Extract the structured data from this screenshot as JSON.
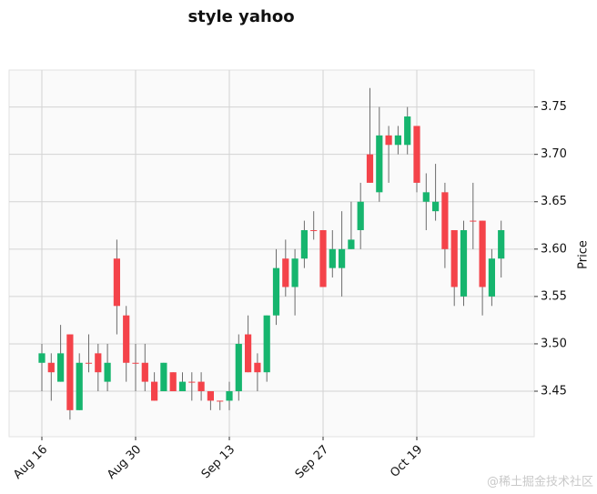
{
  "chart_data": {
    "type": "candlestick",
    "title": "style yahoo",
    "ylabel": "Price",
    "watermark": "@稀土掘金技术社区",
    "categories": [
      "Aug 16",
      null,
      null,
      null,
      null,
      null,
      null,
      null,
      null,
      null,
      "Aug 30",
      null,
      null,
      null,
      null,
      null,
      null,
      null,
      null,
      null,
      "Sep 13",
      null,
      null,
      null,
      null,
      null,
      null,
      null,
      null,
      null,
      "Sep 27",
      null,
      null,
      null,
      null,
      null,
      null,
      null,
      null,
      null,
      "Oct 19",
      null,
      null,
      null,
      null,
      null,
      null,
      null,
      null,
      null
    ],
    "open": [
      3.48,
      3.48,
      3.46,
      3.51,
      3.43,
      3.48,
      3.49,
      3.46,
      3.59,
      3.53,
      3.48,
      3.48,
      3.46,
      3.45,
      3.47,
      3.45,
      3.46,
      3.46,
      3.45,
      3.44,
      3.44,
      3.45,
      3.51,
      3.48,
      3.47,
      3.53,
      3.59,
      3.56,
      3.59,
      3.62,
      3.62,
      3.58,
      3.58,
      3.6,
      3.62,
      3.7,
      3.66,
      3.72,
      3.71,
      3.71,
      3.73,
      3.65,
      3.64,
      3.66,
      3.62,
      3.55,
      3.63,
      3.63,
      3.55,
      3.59
    ],
    "high": [
      3.5,
      3.49,
      3.52,
      3.51,
      3.49,
      3.51,
      3.5,
      3.5,
      3.61,
      3.54,
      3.5,
      3.5,
      3.47,
      3.48,
      3.47,
      3.47,
      3.47,
      3.47,
      3.45,
      3.44,
      3.46,
      3.51,
      3.53,
      3.49,
      3.53,
      3.6,
      3.61,
      3.6,
      3.63,
      3.64,
      3.62,
      3.62,
      3.64,
      3.65,
      3.67,
      3.77,
      3.75,
      3.73,
      3.73,
      3.75,
      3.73,
      3.68,
      3.69,
      3.67,
      3.62,
      3.63,
      3.67,
      3.63,
      3.6,
      3.63
    ],
    "low": [
      3.45,
      3.44,
      3.46,
      3.42,
      3.43,
      3.47,
      3.45,
      3.45,
      3.51,
      3.46,
      3.45,
      3.45,
      3.44,
      3.45,
      3.45,
      3.45,
      3.44,
      3.44,
      3.43,
      3.43,
      3.43,
      3.44,
      3.47,
      3.45,
      3.46,
      3.52,
      3.55,
      3.53,
      3.58,
      3.61,
      3.56,
      3.57,
      3.55,
      3.6,
      3.6,
      3.67,
      3.65,
      3.67,
      3.7,
      3.7,
      3.66,
      3.62,
      3.63,
      3.58,
      3.54,
      3.54,
      3.6,
      3.53,
      3.54,
      3.57
    ],
    "close": [
      3.49,
      3.47,
      3.49,
      3.43,
      3.48,
      3.48,
      3.47,
      3.48,
      3.54,
      3.48,
      3.48,
      3.46,
      3.44,
      3.48,
      3.45,
      3.46,
      3.46,
      3.45,
      3.44,
      3.44,
      3.45,
      3.5,
      3.47,
      3.47,
      3.53,
      3.58,
      3.56,
      3.59,
      3.62,
      3.62,
      3.56,
      3.6,
      3.6,
      3.61,
      3.65,
      3.67,
      3.72,
      3.71,
      3.72,
      3.74,
      3.67,
      3.66,
      3.65,
      3.6,
      3.56,
      3.62,
      3.63,
      3.56,
      3.59,
      3.62
    ],
    "up_color": "#16b56e",
    "down_color": "#f4434a",
    "wick_color": "#6b6b6b",
    "ylim": [
      3.402,
      3.789
    ],
    "yticks": [
      3.45,
      {
        "value": 3.5,
        "label": "3.50"
      },
      3.55,
      {
        "value": 3.6,
        "label": "3.60"
      },
      3.65,
      {
        "value": 3.7,
        "label": "3.70"
      },
      3.75
    ],
    "grid": true
  }
}
